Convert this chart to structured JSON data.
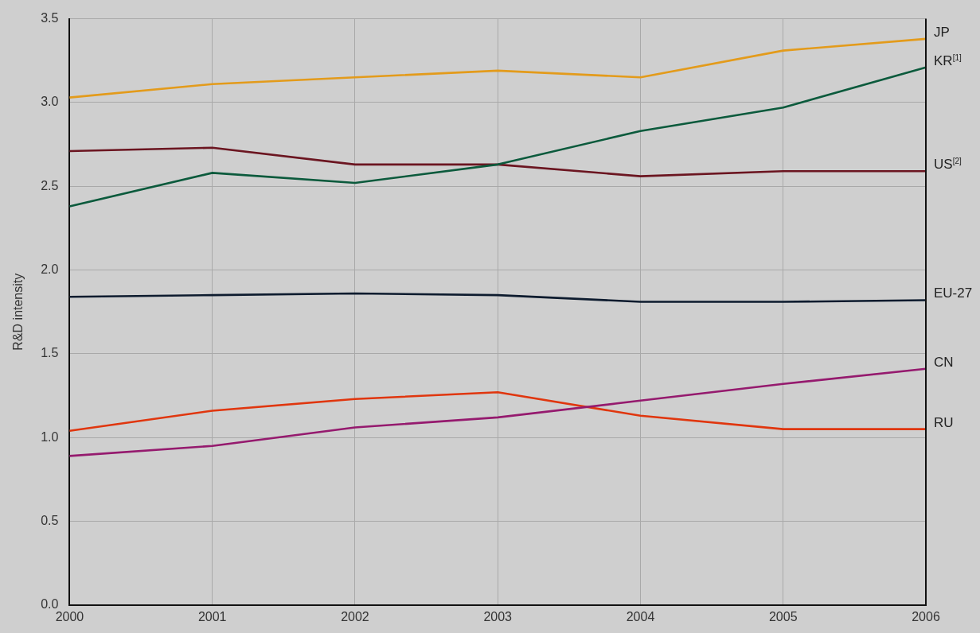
{
  "chart_data": {
    "type": "line",
    "ylabel": "R&D intensity",
    "categories": [
      "2000",
      "2001",
      "2002",
      "2003",
      "2004",
      "2005",
      "2006"
    ],
    "series": [
      {
        "name": "JP",
        "color": "#e39b1b",
        "values": [
          3.03,
          3.11,
          3.15,
          3.19,
          3.15,
          3.31,
          3.38
        ]
      },
      {
        "name": "KR$^{[1]}$",
        "color": "#0b5a3c",
        "values": [
          2.38,
          2.58,
          2.52,
          2.63,
          2.83,
          2.97,
          3.21
        ]
      },
      {
        "name": "US$^{[2]}$",
        "color": "#6b1520",
        "values": [
          2.71,
          2.73,
          2.63,
          2.63,
          2.56,
          2.59,
          2.59
        ]
      },
      {
        "name": "EU-27",
        "color": "#0d1b2e",
        "values": [
          1.84,
          1.85,
          1.86,
          1.85,
          1.81,
          1.81,
          1.82
        ]
      },
      {
        "name": "CN",
        "color": "#951a6e",
        "values": [
          0.89,
          0.95,
          1.06,
          1.12,
          1.22,
          1.32,
          1.41
        ]
      },
      {
        "name": "RU",
        "color": "#e0360e",
        "values": [
          1.04,
          1.16,
          1.23,
          1.27,
          1.13,
          1.05,
          1.05
        ]
      }
    ],
    "ylim": [
      0,
      3.5
    ],
    "yticks": [
      {
        "value": 0,
        "label": "0.0"
      },
      0.5,
      {
        "value": 1,
        "label": "1.0"
      },
      1.5,
      {
        "value": 2,
        "label": "2.0"
      },
      2.5,
      {
        "value": 3,
        "label": "3.0"
      },
      3.5
    ],
    "grid": true,
    "legend": false,
    "marker": "none",
    "line_style": "solid"
  }
}
